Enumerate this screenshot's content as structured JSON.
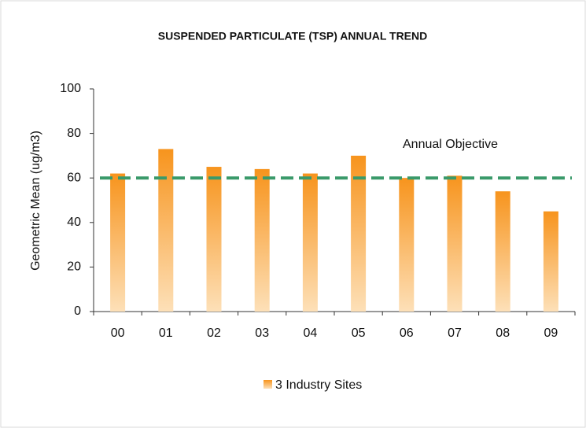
{
  "chart_data": {
    "type": "bar",
    "title": "SUSPENDED PARTICULATE (TSP)  ANNUAL TREND",
    "y_label": "Geometric Mean (ug/m3)",
    "categories": [
      "00",
      "01",
      "02",
      "03",
      "04",
      "05",
      "06",
      "07",
      "08",
      "09"
    ],
    "series": [
      {
        "name": "3 Industry Sites",
        "color": "#f7941d",
        "values": [
          62,
          73,
          65,
          64,
          62,
          70,
          60,
          61,
          54,
          45
        ]
      }
    ],
    "reference_line": {
      "label": "Annual Objective",
      "value": 60,
      "color": "#3a9a6a"
    },
    "ylim": [
      0,
      100
    ],
    "yticks": [
      0,
      20,
      40,
      60,
      80,
      100
    ],
    "legend": "bottom"
  }
}
